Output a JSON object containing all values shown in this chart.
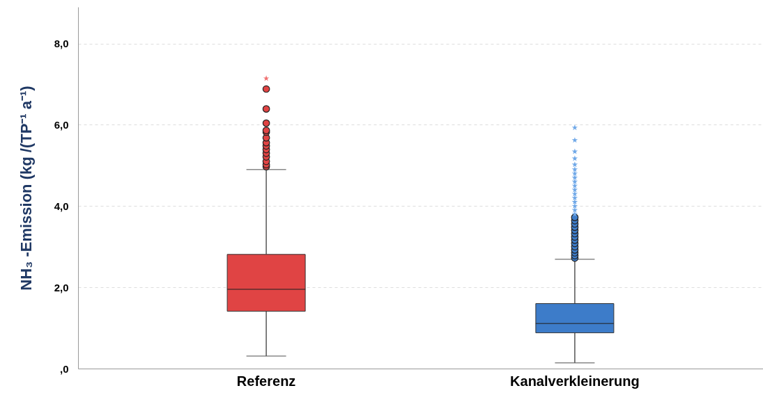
{
  "chart_data": {
    "type": "box",
    "ylabel": "NH₃ -Emission (kg /(TP⁻¹ a⁻¹)",
    "categories": [
      "Referenz",
      "Kanalverkleinerung"
    ],
    "colors": [
      "#e04444",
      "#3d7cc9"
    ],
    "boxes": [
      {
        "low": 0.31,
        "q1": 1.41,
        "median": 1.95,
        "q3": 2.81,
        "high": 4.9,
        "outliers": [
          4.97,
          5.02,
          5.1,
          5.21,
          5.3,
          5.39,
          5.48,
          5.56,
          5.68,
          5.82,
          5.86,
          6.04,
          6.39,
          6.88
        ]
      },
      {
        "low": 0.14,
        "q1": 0.88,
        "median": 1.11,
        "q3": 1.6,
        "high": 2.69,
        "outliers": [
          2.72,
          2.78,
          2.85,
          2.92,
          3.0,
          3.08,
          3.16,
          3.24,
          3.32,
          3.4,
          3.48,
          3.56,
          3.64,
          3.72
        ]
      }
    ],
    "series": [
      {
        "type": "scatter",
        "marker": "star",
        "color": "#f07070",
        "x": [
          "Referenz"
        ],
        "values": [
          7.14
        ]
      },
      {
        "type": "scatter",
        "marker": "star",
        "color": "#6fa8e8",
        "x": [
          "Kanalverkleinerung",
          "Kanalverkleinerung",
          "Kanalverkleinerung",
          "Kanalverkleinerung",
          "Kanalverkleinerung",
          "Kanalverkleinerung",
          "Kanalverkleinerung",
          "Kanalverkleinerung",
          "Kanalverkleinerung",
          "Kanalverkleinerung",
          "Kanalverkleinerung",
          "Kanalverkleinerung",
          "Kanalverkleinerung",
          "Kanalverkleinerung",
          "Kanalverkleinerung",
          "Kanalverkleinerung",
          "Kanalverkleinerung"
        ],
        "values": [
          3.8,
          3.9,
          4.0,
          4.1,
          4.2,
          4.3,
          4.4,
          4.5,
          4.6,
          4.7,
          4.8,
          4.9,
          5.02,
          5.17,
          5.34,
          5.62,
          5.93
        ]
      }
    ],
    "ylim": [
      0,
      8.9
    ],
    "yticks": [
      {
        "value": 0,
        "label": ",0"
      },
      {
        "value": 2,
        "label": "2,0"
      },
      {
        "value": 4,
        "label": "4,0"
      },
      {
        "value": 6,
        "label": "6,0"
      },
      {
        "value": 8,
        "label": "8,0"
      }
    ],
    "grid": "y",
    "marker": "circle"
  }
}
